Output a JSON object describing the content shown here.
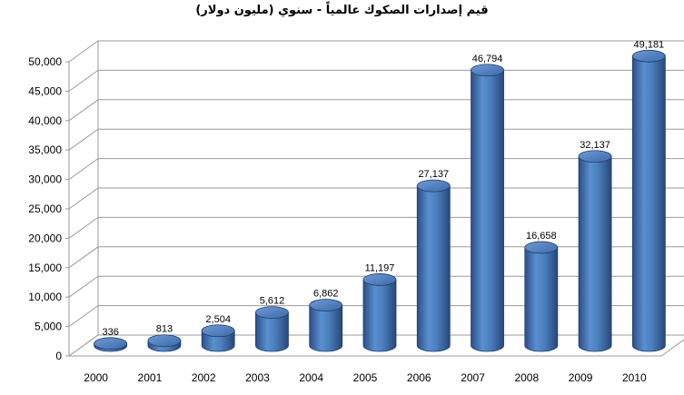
{
  "chart_data": {
    "type": "bar",
    "title": "قيم إصدارات الصكوك عالمياً - سنوي (مليون دولار)",
    "xlabel": "",
    "ylabel": "",
    "categories": [
      "2000",
      "2001",
      "2002",
      "2003",
      "2004",
      "2005",
      "2006",
      "2007",
      "2008",
      "2009",
      "2010"
    ],
    "values": [
      336,
      813,
      2504,
      5612,
      6862,
      11197,
      27137,
      46794,
      16658,
      32137,
      49181
    ],
    "value_labels": [
      "336",
      "813",
      "2,504",
      "5,612",
      "6,862",
      "11,197",
      "27,137",
      "46,794",
      "16,658",
      "32,137",
      "49,181"
    ],
    "ylim": [
      0,
      50000
    ],
    "yticks": [
      0,
      5000,
      10000,
      15000,
      20000,
      25000,
      30000,
      35000,
      40000,
      45000,
      50000
    ],
    "ytick_labels": [
      "0",
      "5,000",
      "10,000",
      "15,000",
      "20,000",
      "25,000",
      "30,000",
      "35,000",
      "40,000",
      "45,000",
      "50,000"
    ],
    "grid": true,
    "style": "3d-cylinder",
    "bar_color": "#4a7ebb"
  }
}
